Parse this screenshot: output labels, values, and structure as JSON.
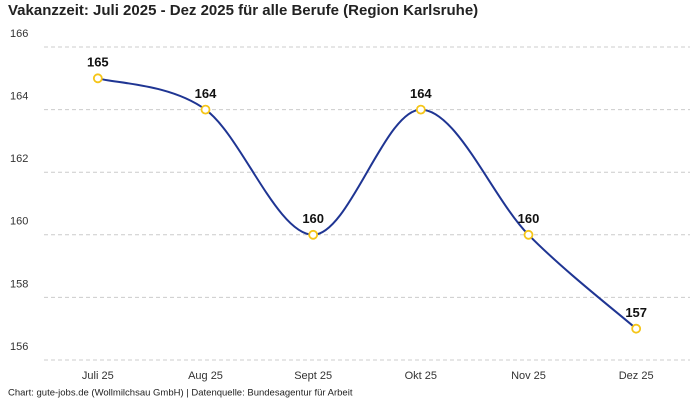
{
  "chart_data": {
    "type": "line",
    "title": "Vakanzzeit: Juli 2025 - Dez 2025 für alle Berufe (Region Karlsruhe)",
    "source": "Chart: gute-jobs.de (Wollmilchsau GmbH) | Datenquelle: Bundesagentur für Arbeit",
    "categories": [
      "Juli 25",
      "Aug 25",
      "Sept 25",
      "Okt 25",
      "Nov 25",
      "Dez 25"
    ],
    "series": [
      {
        "name": "Vakanzzeit",
        "color": "#1f3593",
        "marker_color": "#f5c518",
        "values": [
          165,
          164,
          160,
          164,
          160,
          157
        ]
      }
    ],
    "ylim": [
      156,
      166
    ],
    "yticks": [
      156,
      158,
      160,
      162,
      164,
      166
    ],
    "grid": true,
    "smooth": true
  }
}
